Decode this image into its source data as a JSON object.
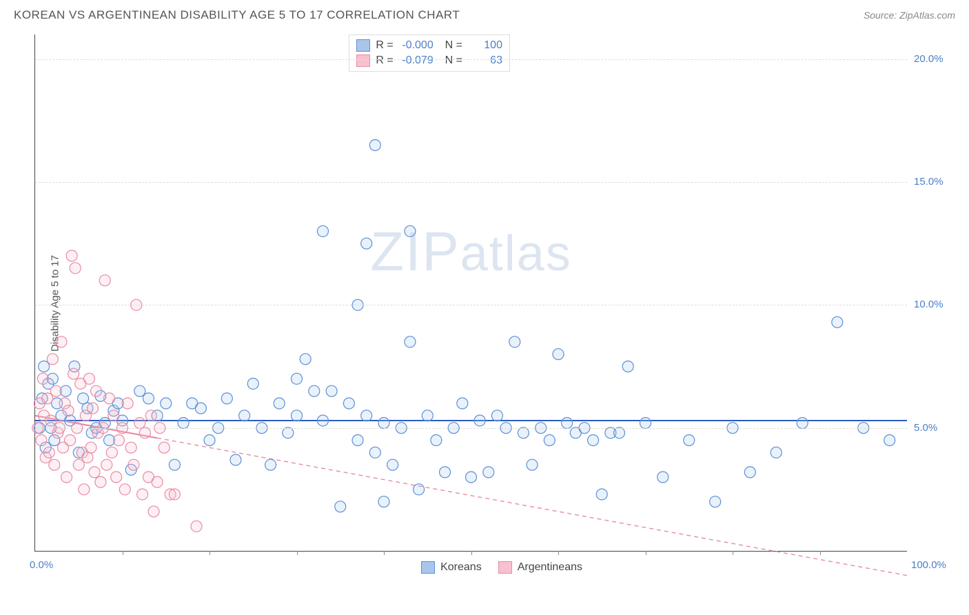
{
  "title": "KOREAN VS ARGENTINEAN DISABILITY AGE 5 TO 17 CORRELATION CHART",
  "source": "Source: ZipAtlas.com",
  "watermark": "ZIPatlas",
  "ylabel": "Disability Age 5 to 17",
  "chart": {
    "type": "scatter",
    "xlim": [
      0,
      100
    ],
    "ylim": [
      0,
      21
    ],
    "ytick_vals": [
      5,
      10,
      15,
      20
    ],
    "ytick_labels": [
      "5.0%",
      "10.0%",
      "15.0%",
      "20.0%"
    ],
    "xtick_vals": [
      10,
      20,
      30,
      40,
      50,
      60,
      70,
      80,
      90
    ],
    "x_minlabel": "0.0%",
    "x_maxlabel": "100.0%",
    "grid_color": "#dddddd",
    "background_color": "#ffffff",
    "marker_radius": 8,
    "marker_stroke_width": 1.2,
    "marker_fill_opacity": 0.25
  },
  "series": [
    {
      "name": "Koreans",
      "color_stroke": "#5b8fd6",
      "color_fill": "#a9c6ea",
      "R": "-0.000",
      "N": "100",
      "trend": {
        "y_at_x0": 5.3,
        "y_at_x100": 5.3,
        "style": "solid",
        "color": "#2a5bbf",
        "width": 2
      },
      "points": [
        [
          0.5,
          5.0
        ],
        [
          0.8,
          6.2
        ],
        [
          1.0,
          7.5
        ],
        [
          1.2,
          4.2
        ],
        [
          1.5,
          6.8
        ],
        [
          1.8,
          5.0
        ],
        [
          2.0,
          7.0
        ],
        [
          2.2,
          4.5
        ],
        [
          2.5,
          6.0
        ],
        [
          3.0,
          5.5
        ],
        [
          3.5,
          6.5
        ],
        [
          4.0,
          5.3
        ],
        [
          4.5,
          7.5
        ],
        [
          5.0,
          4.0
        ],
        [
          5.5,
          6.2
        ],
        [
          6.0,
          5.8
        ],
        [
          6.5,
          4.8
        ],
        [
          7.0,
          5.0
        ],
        [
          7.5,
          6.3
        ],
        [
          8.0,
          5.2
        ],
        [
          8.5,
          4.5
        ],
        [
          9.0,
          5.7
        ],
        [
          9.5,
          6.0
        ],
        [
          10,
          5.3
        ],
        [
          11,
          3.3
        ],
        [
          12,
          6.5
        ],
        [
          13,
          6.2
        ],
        [
          14,
          5.5
        ],
        [
          15,
          6.0
        ],
        [
          16,
          3.5
        ],
        [
          17,
          5.2
        ],
        [
          18,
          6.0
        ],
        [
          19,
          5.8
        ],
        [
          20,
          4.5
        ],
        [
          21,
          5.0
        ],
        [
          22,
          6.2
        ],
        [
          23,
          3.7
        ],
        [
          24,
          5.5
        ],
        [
          25,
          6.8
        ],
        [
          26,
          5.0
        ],
        [
          27,
          3.5
        ],
        [
          28,
          6.0
        ],
        [
          29,
          4.8
        ],
        [
          30,
          5.5
        ],
        [
          30,
          7.0
        ],
        [
          31,
          7.8
        ],
        [
          32,
          6.5
        ],
        [
          33,
          13.0
        ],
        [
          33,
          5.3
        ],
        [
          34,
          6.5
        ],
        [
          35,
          1.8
        ],
        [
          36,
          6.0
        ],
        [
          37,
          10.0
        ],
        [
          37,
          4.5
        ],
        [
          38,
          12.5
        ],
        [
          38,
          5.5
        ],
        [
          39,
          16.5
        ],
        [
          39,
          4.0
        ],
        [
          40,
          5.2
        ],
        [
          40,
          2.0
        ],
        [
          41,
          3.5
        ],
        [
          42,
          5.0
        ],
        [
          43,
          8.5
        ],
        [
          43,
          13.0
        ],
        [
          44,
          2.5
        ],
        [
          45,
          5.5
        ],
        [
          46,
          4.5
        ],
        [
          47,
          3.2
        ],
        [
          48,
          5.0
        ],
        [
          49,
          6.0
        ],
        [
          50,
          3.0
        ],
        [
          51,
          5.3
        ],
        [
          52,
          3.2
        ],
        [
          53,
          5.5
        ],
        [
          54,
          5.0
        ],
        [
          55,
          8.5
        ],
        [
          56,
          4.8
        ],
        [
          57,
          3.5
        ],
        [
          58,
          5.0
        ],
        [
          59,
          4.5
        ],
        [
          60,
          8.0
        ],
        [
          61,
          5.2
        ],
        [
          62,
          4.8
        ],
        [
          63,
          5.0
        ],
        [
          64,
          4.5
        ],
        [
          65,
          2.3
        ],
        [
          66,
          4.8
        ],
        [
          67,
          4.8
        ],
        [
          68,
          7.5
        ],
        [
          70,
          5.2
        ],
        [
          72,
          3.0
        ],
        [
          75,
          4.5
        ],
        [
          78,
          2.0
        ],
        [
          80,
          5.0
        ],
        [
          82,
          3.2
        ],
        [
          85,
          4.0
        ],
        [
          88,
          5.2
        ],
        [
          92,
          9.3
        ],
        [
          95,
          5.0
        ],
        [
          98,
          4.5
        ]
      ]
    },
    {
      "name": "Argentineans",
      "color_stroke": "#e88ba3",
      "color_fill": "#f7c1cf",
      "R": "-0.079",
      "N": "63",
      "trend": {
        "y_at_x0": 5.5,
        "y_at_x100": -1.0,
        "solid_until_x": 14,
        "style": "dashed",
        "color": "#e88ba3",
        "width": 1.4
      },
      "points": [
        [
          0.3,
          5.0
        ],
        [
          0.5,
          6.0
        ],
        [
          0.7,
          4.5
        ],
        [
          0.9,
          7.0
        ],
        [
          1.0,
          5.5
        ],
        [
          1.2,
          3.8
        ],
        [
          1.4,
          6.2
        ],
        [
          1.6,
          4.0
        ],
        [
          1.8,
          5.3
        ],
        [
          2.0,
          7.8
        ],
        [
          2.2,
          3.5
        ],
        [
          2.4,
          6.5
        ],
        [
          2.6,
          4.8
        ],
        [
          2.8,
          5.0
        ],
        [
          3.0,
          8.5
        ],
        [
          3.2,
          4.2
        ],
        [
          3.4,
          6.0
        ],
        [
          3.6,
          3.0
        ],
        [
          3.8,
          5.7
        ],
        [
          4.0,
          4.5
        ],
        [
          4.2,
          12.0
        ],
        [
          4.4,
          7.2
        ],
        [
          4.6,
          11.5
        ],
        [
          4.8,
          5.0
        ],
        [
          5.0,
          3.5
        ],
        [
          5.2,
          6.8
        ],
        [
          5.4,
          4.0
        ],
        [
          5.6,
          2.5
        ],
        [
          5.8,
          5.5
        ],
        [
          6.0,
          3.8
        ],
        [
          6.2,
          7.0
        ],
        [
          6.4,
          4.2
        ],
        [
          6.6,
          5.8
        ],
        [
          6.8,
          3.2
        ],
        [
          7.0,
          6.5
        ],
        [
          7.2,
          4.8
        ],
        [
          7.5,
          2.8
        ],
        [
          7.8,
          5.0
        ],
        [
          8.0,
          11.0
        ],
        [
          8.2,
          3.5
        ],
        [
          8.5,
          6.2
        ],
        [
          8.8,
          4.0
        ],
        [
          9.0,
          5.5
        ],
        [
          9.3,
          3.0
        ],
        [
          9.6,
          4.5
        ],
        [
          10.0,
          5.0
        ],
        [
          10.3,
          2.5
        ],
        [
          10.6,
          6.0
        ],
        [
          11.0,
          4.2
        ],
        [
          11.3,
          3.5
        ],
        [
          11.6,
          10.0
        ],
        [
          12.0,
          5.2
        ],
        [
          12.3,
          2.3
        ],
        [
          12.6,
          4.8
        ],
        [
          13.0,
          3.0
        ],
        [
          13.3,
          5.5
        ],
        [
          13.6,
          1.6
        ],
        [
          14.0,
          2.8
        ],
        [
          14.3,
          5.0
        ],
        [
          15.5,
          2.3
        ],
        [
          16.0,
          2.3
        ],
        [
          18.5,
          1.0
        ],
        [
          14.8,
          4.2
        ]
      ]
    }
  ],
  "bottom_legend": [
    {
      "label": "Koreans",
      "swatch_fill": "#a9c6ea",
      "swatch_stroke": "#5b8fd6"
    },
    {
      "label": "Argentineans",
      "swatch_fill": "#f7c1cf",
      "swatch_stroke": "#e88ba3"
    }
  ]
}
